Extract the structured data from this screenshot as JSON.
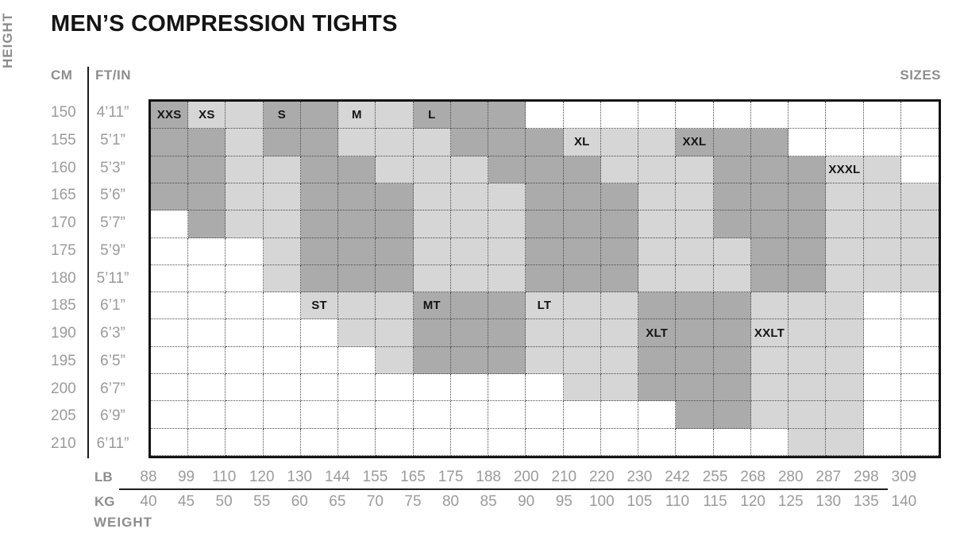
{
  "title": "MEN’S COMPRESSION TIGHTS",
  "corner_labels": {
    "height": "HEIGHT",
    "weight": "WEIGHT",
    "sizes": "SIZES",
    "cm": "CM",
    "ftin": "FT/IN",
    "lb": "LB",
    "kg": "KG"
  },
  "chart_data": {
    "type": "heatmap",
    "title": "MEN’S COMPRESSION TIGHTS",
    "y_axis": {
      "label": "HEIGHT",
      "cm": [
        "150",
        "155",
        "160",
        "165",
        "170",
        "175",
        "180",
        "185",
        "190",
        "195",
        "200",
        "205",
        "210"
      ],
      "ftin": [
        "4’11”",
        "5’1”",
        "5’3”",
        "5’6”",
        "5’7”",
        "5’9”",
        "5’11”",
        "6’1”",
        "6’3”",
        "6’5”",
        "6’7”",
        "6’9”",
        "6’11”"
      ]
    },
    "x_axis": {
      "label": "WEIGHT",
      "lb": [
        "88",
        "99",
        "110",
        "120",
        "130",
        "144",
        "155",
        "165",
        "175",
        "188",
        "200",
        "210",
        "220",
        "230",
        "242",
        "255",
        "268",
        "280",
        "287",
        "298",
        "309"
      ],
      "kg": [
        "40",
        "45",
        "50",
        "55",
        "60",
        "65",
        "70",
        "75",
        "80",
        "85",
        "90",
        "95",
        "100",
        "105",
        "110",
        "115",
        "120",
        "125",
        "130",
        "135",
        "140"
      ]
    },
    "sizes": [
      "XXS",
      "XS",
      "S",
      "M",
      "L",
      "XL",
      "XXL",
      "XXXL",
      "ST",
      "MT",
      "LT",
      "XLT",
      "XXLT"
    ],
    "shading_colors": {
      "D": "#ababab",
      "L": "#d6d6d6",
      "W": "#ffffff"
    },
    "cell_shading": [
      "DLLDDLLDDDWWWWWWWWWWW",
      "DDLDDLLLDDDLLLDDDWWWW",
      "DDLLDDLLLDDDLLLDDDLLW",
      "DDLLDDDLLLDDDLLDDDLLL",
      "WDLLDDDLLLDDDLLDDDLLL",
      "WWWLDDDLLLDDDLLLDDLLL",
      "WWWLDDDLLLDDDLLLDDLLL",
      "WWWWLLLDDDLLLDDDLLLWW",
      "WWWWWLLDDDLLLDDDLLLWW",
      "WWWWWWLDDDLLLDDDLLLWW",
      "WWWWWWWWWWWLLDDDLLLWW",
      "WWWWWWWWWWWWWWDDLLLWW",
      "WWWWWWWWWWWWWWWWWLLWW"
    ],
    "size_label_positions": [
      {
        "label": "XXS",
        "row": 0,
        "col": 0
      },
      {
        "label": "XS",
        "row": 0,
        "col": 1
      },
      {
        "label": "S",
        "row": 0,
        "col": 3
      },
      {
        "label": "M",
        "row": 0,
        "col": 5
      },
      {
        "label": "L",
        "row": 0,
        "col": 7
      },
      {
        "label": "XL",
        "row": 1,
        "col": 11
      },
      {
        "label": "XXL",
        "row": 1,
        "col": 14
      },
      {
        "label": "XXXL",
        "row": 2,
        "col": 18
      },
      {
        "label": "ST",
        "row": 7,
        "col": 4
      },
      {
        "label": "MT",
        "row": 7,
        "col": 7
      },
      {
        "label": "LT",
        "row": 7,
        "col": 10
      },
      {
        "label": "XLT",
        "row": 8,
        "col": 13
      },
      {
        "label": "XXLT",
        "row": 8,
        "col": 16
      }
    ]
  }
}
